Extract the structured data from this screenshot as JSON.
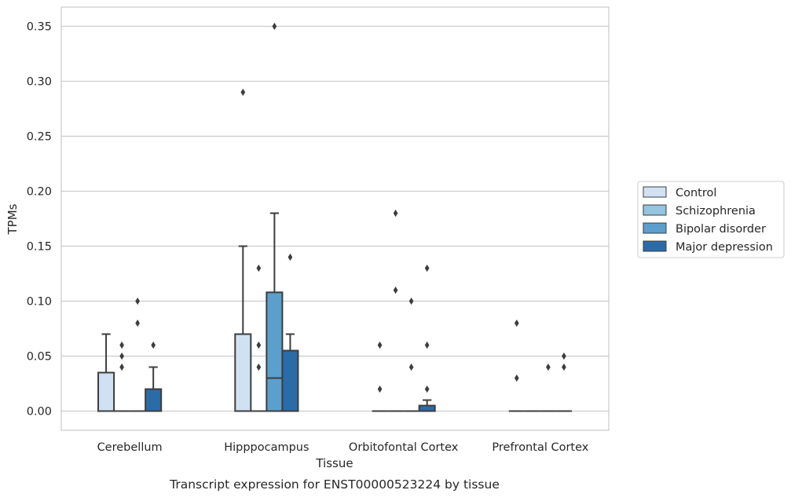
{
  "chart_data": {
    "type": "box",
    "title": "Transcript expression for ENST00000523224 by tissue",
    "xlabel": "Tissue",
    "ylabel": "TPMs",
    "ylim": [
      -0.0175,
      0.3675
    ],
    "yticks": [
      0.0,
      0.05,
      0.1,
      0.15,
      0.2,
      0.25,
      0.3,
      0.35
    ],
    "ytick_labels": [
      "0.00",
      "0.05",
      "0.10",
      "0.15",
      "0.20",
      "0.25",
      "0.30",
      "0.35"
    ],
    "grid": true,
    "legend_position": "right",
    "categories": [
      "Cerebellum",
      "Hipppocampus",
      "Orbitofontal Cortex",
      "Prefrontal Cortex"
    ],
    "series": [
      {
        "name": "Control",
        "color": "#d0e1f2",
        "boxes": [
          {
            "q1": 0.0,
            "median": 0.0,
            "q3": 0.035,
            "whisker_low": 0.0,
            "whisker_high": 0.07,
            "outliers": []
          },
          {
            "q1": 0.0,
            "median": 0.0,
            "q3": 0.07,
            "whisker_low": 0.0,
            "whisker_high": 0.15,
            "outliers": [
              0.29
            ]
          },
          {
            "q1": 0.0,
            "median": 0.0,
            "q3": 0.0,
            "whisker_low": 0.0,
            "whisker_high": 0.0,
            "outliers": [
              0.02,
              0.06
            ]
          },
          {
            "q1": 0.0,
            "median": 0.0,
            "q3": 0.0,
            "whisker_low": 0.0,
            "whisker_high": 0.0,
            "outliers": [
              0.03,
              0.08
            ]
          }
        ]
      },
      {
        "name": "Schizophrenia",
        "color": "#94c4df",
        "boxes": [
          {
            "q1": 0.0,
            "median": 0.0,
            "q3": 0.0,
            "whisker_low": 0.0,
            "whisker_high": 0.0,
            "outliers": [
              0.04,
              0.05,
              0.06
            ]
          },
          {
            "q1": 0.0,
            "median": 0.0,
            "q3": 0.0,
            "whisker_low": 0.0,
            "whisker_high": 0.0,
            "outliers": [
              0.04,
              0.06,
              0.13
            ]
          },
          {
            "q1": 0.0,
            "median": 0.0,
            "q3": 0.0,
            "whisker_low": 0.0,
            "whisker_high": 0.0,
            "outliers": [
              0.11,
              0.18
            ]
          },
          {
            "q1": 0.0,
            "median": 0.0,
            "q3": 0.0,
            "whisker_low": 0.0,
            "whisker_high": 0.0,
            "outliers": []
          }
        ]
      },
      {
        "name": "Bipolar disorder",
        "color": "#5c9fcd",
        "boxes": [
          {
            "q1": 0.0,
            "median": 0.0,
            "q3": 0.0,
            "whisker_low": 0.0,
            "whisker_high": 0.0,
            "outliers": [
              0.08,
              0.1
            ]
          },
          {
            "q1": 0.0,
            "median": 0.03,
            "q3": 0.108,
            "whisker_low": 0.0,
            "whisker_high": 0.18,
            "outliers": [
              0.35
            ]
          },
          {
            "q1": 0.0,
            "median": 0.0,
            "q3": 0.0,
            "whisker_low": 0.0,
            "whisker_high": 0.0,
            "outliers": [
              0.04,
              0.1
            ]
          },
          {
            "q1": 0.0,
            "median": 0.0,
            "q3": 0.0,
            "whisker_low": 0.0,
            "whisker_high": 0.0,
            "outliers": [
              0.04
            ]
          }
        ]
      },
      {
        "name": "Major depression",
        "color": "#2b6ba8",
        "boxes": [
          {
            "q1": 0.0,
            "median": 0.0,
            "q3": 0.02,
            "whisker_low": 0.0,
            "whisker_high": 0.04,
            "outliers": [
              0.06
            ]
          },
          {
            "q1": 0.0,
            "median": 0.0,
            "q3": 0.055,
            "whisker_low": 0.0,
            "whisker_high": 0.07,
            "outliers": [
              0.14
            ]
          },
          {
            "q1": 0.0,
            "median": 0.0,
            "q3": 0.005,
            "whisker_low": 0.0,
            "whisker_high": 0.01,
            "outliers": [
              0.02,
              0.06,
              0.13
            ]
          },
          {
            "q1": 0.0,
            "median": 0.0,
            "q3": 0.0,
            "whisker_low": 0.0,
            "whisker_high": 0.0,
            "outliers": [
              0.04,
              0.05
            ]
          }
        ]
      }
    ]
  }
}
